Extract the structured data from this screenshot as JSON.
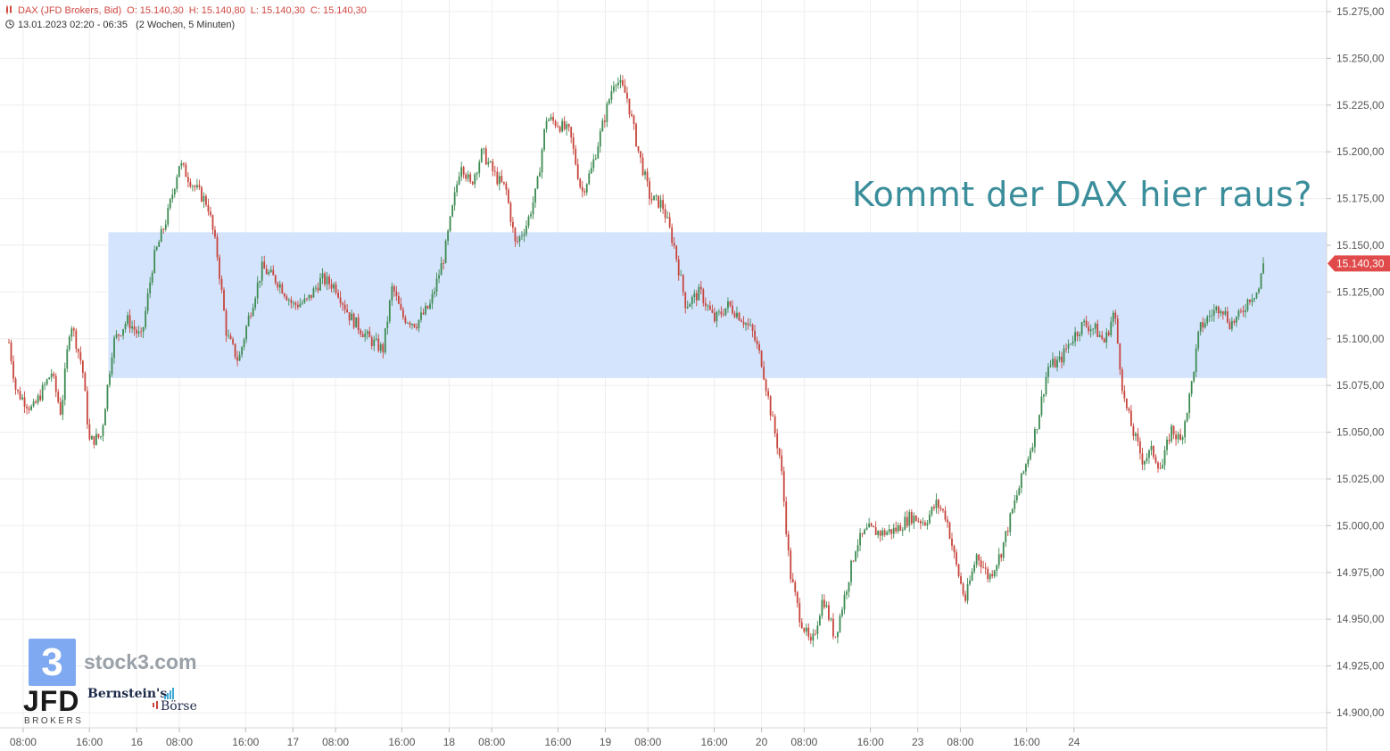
{
  "header": {
    "instrument": "DAX (JFD Brokers, Bid)",
    "open": "O: 15.140,30",
    "high": "H: 15.140,80",
    "low": "L: 15.140,30",
    "close": "C: 15.140,30",
    "range": "13.01.2023 02:20 - 06:35",
    "period": "(2 Wochen, 5 Minuten)"
  },
  "headline": "Kommt der DAX hier raus?",
  "price_badge": "15.140,30",
  "branding": {
    "stock3_mark": "3",
    "stock3": "stock3.com",
    "jfd": "JFD",
    "jfd_sub": "BROKERS",
    "bernstein": "Bernstein's",
    "boerse": "Börse"
  },
  "colors": {
    "up": "#3d8b52",
    "down": "#c7453c",
    "zone": "#d3e3fd",
    "headline": "#3a8d9a",
    "badge": "#e04a4a",
    "grid": "#eeeeee"
  },
  "chart_data": {
    "type": "candlestick",
    "instrument": "DAX",
    "timeframe": "5 Minuten",
    "ylim": [
      14890,
      15280
    ],
    "y_ticks": [
      "15.275,00",
      "15.250,00",
      "15.225,00",
      "15.200,00",
      "15.175,00",
      "15.150,00",
      "15.125,00",
      "15.100,00",
      "15.075,00",
      "15.050,00",
      "15.025,00",
      "15.000,00",
      "14.975,00",
      "14.950,00",
      "14.925,00",
      "14.900,00"
    ],
    "y_tick_values": [
      15275,
      15250,
      15225,
      15200,
      15175,
      15150,
      15125,
      15100,
      15075,
      15050,
      15025,
      15000,
      14975,
      14950,
      14925,
      14900
    ],
    "x_ticks": [
      "08:00",
      "16:00",
      "16",
      "08:00",
      "16:00",
      "17",
      "08:00",
      "16:00",
      "18",
      "08:00",
      "16:00",
      "19",
      "08:00",
      "16:00",
      "20",
      "08:00",
      "16:00",
      "23",
      "08:00",
      "16:00",
      "24"
    ],
    "x_tick_positions": [
      0.3,
      1.7,
      2.7,
      3.6,
      5.0,
      6.0,
      6.9,
      8.3,
      9.3,
      10.2,
      11.6,
      12.6,
      13.5,
      14.9,
      15.9,
      16.8,
      18.2,
      19.2,
      20.1,
      21.5,
      22.5
    ],
    "n_sessions": 26.5,
    "zone": {
      "from": 15079,
      "to": 15157,
      "start_session": 2.1,
      "label": ""
    },
    "last_price": 15140.3,
    "price_path": [
      [
        0.0,
        15098
      ],
      [
        0.15,
        15072
      ],
      [
        0.5,
        15062
      ],
      [
        0.9,
        15082
      ],
      [
        1.1,
        15060
      ],
      [
        1.3,
        15110
      ],
      [
        1.55,
        15085
      ],
      [
        1.7,
        15045
      ],
      [
        1.95,
        15048
      ],
      [
        2.2,
        15098
      ],
      [
        2.5,
        15110
      ],
      [
        2.8,
        15100
      ],
      [
        3.05,
        15142
      ],
      [
        3.35,
        15166
      ],
      [
        3.6,
        15194
      ],
      [
        3.9,
        15182
      ],
      [
        4.2,
        15172
      ],
      [
        4.4,
        15145
      ],
      [
        4.6,
        15102
      ],
      [
        4.85,
        15088
      ],
      [
        5.05,
        15110
      ],
      [
        5.35,
        15138
      ],
      [
        5.7,
        15130
      ],
      [
        6.0,
        15118
      ],
      [
        6.3,
        15120
      ],
      [
        6.6,
        15132
      ],
      [
        6.9,
        15128
      ],
      [
        7.2,
        15112
      ],
      [
        7.6,
        15100
      ],
      [
        7.9,
        15094
      ],
      [
        8.1,
        15128
      ],
      [
        8.3,
        15112
      ],
      [
        8.6,
        15108
      ],
      [
        8.9,
        15118
      ],
      [
        9.2,
        15145
      ],
      [
        9.55,
        15195
      ],
      [
        9.75,
        15182
      ],
      [
        10.0,
        15200
      ],
      [
        10.3,
        15186
      ],
      [
        10.5,
        15180
      ],
      [
        10.7,
        15150
      ],
      [
        10.95,
        15162
      ],
      [
        11.15,
        15180
      ],
      [
        11.35,
        15218
      ],
      [
        11.6,
        15215
      ],
      [
        11.85,
        15210
      ],
      [
        12.1,
        15178
      ],
      [
        12.3,
        15190
      ],
      [
        12.55,
        15215
      ],
      [
        12.8,
        15240
      ],
      [
        13.05,
        15230
      ],
      [
        13.3,
        15200
      ],
      [
        13.55,
        15175
      ],
      [
        13.8,
        15172
      ],
      [
        14.05,
        15150
      ],
      [
        14.3,
        15118
      ],
      [
        14.6,
        15125
      ],
      [
        14.9,
        15110
      ],
      [
        15.2,
        15118
      ],
      [
        15.45,
        15112
      ],
      [
        15.7,
        15104
      ],
      [
        15.9,
        15088
      ],
      [
        16.1,
        15060
      ],
      [
        16.3,
        15035
      ],
      [
        16.5,
        14975
      ],
      [
        16.7,
        14952
      ],
      [
        16.95,
        14935
      ],
      [
        17.2,
        14962
      ],
      [
        17.45,
        14940
      ],
      [
        17.65,
        14962
      ],
      [
        17.9,
        14990
      ],
      [
        18.15,
        14998
      ],
      [
        18.45,
        14996
      ],
      [
        18.75,
        14998
      ],
      [
        19.05,
        15005
      ],
      [
        19.35,
        15002
      ],
      [
        19.6,
        15012
      ],
      [
        19.8,
        15005
      ],
      [
        20.0,
        14980
      ],
      [
        20.2,
        14960
      ],
      [
        20.45,
        14985
      ],
      [
        20.7,
        14972
      ],
      [
        20.95,
        14985
      ],
      [
        21.2,
        15008
      ],
      [
        21.45,
        15030
      ],
      [
        21.7,
        15052
      ],
      [
        21.95,
        15085
      ],
      [
        22.2,
        15088
      ],
      [
        22.45,
        15100
      ],
      [
        22.7,
        15108
      ],
      [
        22.95,
        15105
      ],
      [
        23.15,
        15098
      ],
      [
        23.35,
        15115
      ],
      [
        23.55,
        15068
      ],
      [
        23.75,
        15050
      ],
      [
        23.95,
        15035
      ],
      [
        24.15,
        15040
      ],
      [
        24.35,
        15030
      ],
      [
        24.55,
        15052
      ],
      [
        24.75,
        15045
      ],
      [
        24.95,
        15070
      ],
      [
        25.15,
        15105
      ],
      [
        25.35,
        15112
      ],
      [
        25.6,
        15118
      ],
      [
        25.8,
        15108
      ],
      [
        26.0,
        15112
      ],
      [
        26.2,
        15122
      ],
      [
        26.4,
        15126
      ],
      [
        26.5,
        15140.3
      ]
    ]
  }
}
